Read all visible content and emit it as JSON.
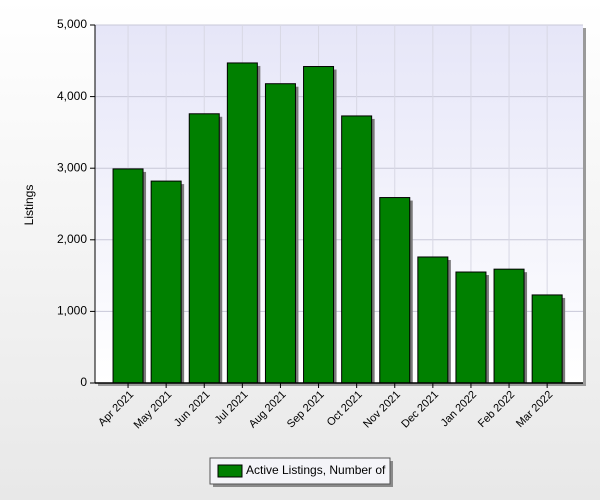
{
  "chart_data": {
    "type": "bar",
    "y_label": "Listings",
    "categories": [
      "Apr 2021",
      "May 2021",
      "Jun 2021",
      "Jul 2021",
      "Aug 2021",
      "Sep 2021",
      "Oct 2021",
      "Nov 2021",
      "Dec 2021",
      "Jan 2022",
      "Feb 2022",
      "Mar 2022"
    ],
    "series": [
      {
        "name": "Active Listings, Number of",
        "color": "#008000",
        "values": [
          2990,
          2820,
          3760,
          4470,
          4180,
          4420,
          3730,
          2590,
          1760,
          1550,
          1590,
          1230
        ]
      }
    ],
    "ylim": [
      0,
      5000
    ],
    "yticks": [
      0,
      {
        "value": 1000,
        "label": "1,000"
      },
      {
        "value": 2000,
        "label": "2,000"
      },
      {
        "value": 3000,
        "label": "3,000"
      },
      {
        "value": 4000,
        "label": "4,000"
      },
      {
        "value": 5000,
        "label": "5,000"
      }
    ],
    "grid": true,
    "legend": "bottom"
  }
}
